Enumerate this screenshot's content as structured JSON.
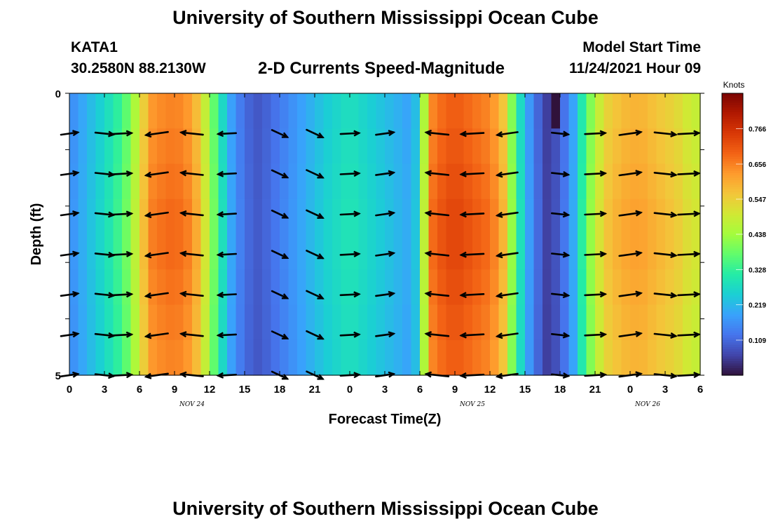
{
  "header": {
    "title": "University of Southern Mississippi Ocean Cube",
    "station_id": "KATA1",
    "station_coords": "30.2580N  88.2130W",
    "plot_title": "2-D Currents Speed-Magnitude",
    "start_label": "Model Start Time",
    "start_value": "11/24/2021 Hour 09"
  },
  "footer": {
    "repeated_title": "University of Southern Mississippi Ocean Cube"
  },
  "chart_data": {
    "type": "heatmap",
    "title": "2-D Currents Speed-Magnitude",
    "xlabel": "Forecast Time(Z)",
    "ylabel": "Depth (ft)",
    "x_tick_labels": [
      "0",
      "3",
      "6",
      "9",
      "12",
      "15",
      "18",
      "21",
      "0",
      "3",
      "6",
      "9",
      "12",
      "15",
      "18",
      "21",
      "0",
      "3",
      "6"
    ],
    "x_date_labels": [
      {
        "label": "NOV 24",
        "tick_index": 3.5
      },
      {
        "label": "NOV 25",
        "tick_index": 11.5
      },
      {
        "label": "NOV 26",
        "tick_index": 16.5
      }
    ],
    "y_tick_labels": [
      "0",
      "5"
    ],
    "ylim": [
      0,
      5
    ],
    "hours": 54,
    "depth_rows": 8,
    "colorbar": {
      "title": "Knots",
      "tick_labels": [
        "0.109",
        "0.219",
        "0.328",
        "0.438",
        "0.547",
        "0.656",
        "0.766"
      ],
      "tick_values": [
        0.109,
        0.219,
        0.328,
        0.438,
        0.547,
        0.656,
        0.766
      ],
      "range": [
        0.0,
        0.876
      ],
      "colors": [
        "#30123b",
        "#4145ab",
        "#4675ed",
        "#39a2fc",
        "#1bcfd4",
        "#24eca6",
        "#61fc6c",
        "#a4fc3c",
        "#d1e834",
        "#f3c63a",
        "#fe9b2d",
        "#f36315",
        "#d93806",
        "#b11901",
        "#7a0403"
      ]
    },
    "speed_profile_knots": [
      [
        0,
        0.16
      ],
      [
        1,
        0.2
      ],
      [
        2,
        0.24
      ],
      [
        3,
        0.28
      ],
      [
        4,
        0.33
      ],
      [
        5,
        0.4
      ],
      [
        6,
        0.52
      ],
      [
        6.5,
        0.6
      ],
      [
        7,
        0.66
      ],
      [
        8,
        0.68
      ],
      [
        9,
        0.69
      ],
      [
        10,
        0.67
      ],
      [
        11,
        0.6
      ],
      [
        12,
        0.45
      ],
      [
        13,
        0.3
      ],
      [
        14,
        0.18
      ],
      [
        15,
        0.12
      ],
      [
        16,
        0.09
      ],
      [
        17,
        0.11
      ],
      [
        18,
        0.14
      ],
      [
        19,
        0.17
      ],
      [
        20,
        0.2
      ],
      [
        21,
        0.23
      ],
      [
        22,
        0.26
      ],
      [
        23,
        0.28
      ],
      [
        24,
        0.3
      ],
      [
        25,
        0.28
      ],
      [
        26,
        0.26
      ],
      [
        27,
        0.24
      ],
      [
        28,
        0.22
      ],
      [
        29,
        0.2
      ],
      [
        30,
        0.26
      ],
      [
        30.5,
        0.55
      ],
      [
        31,
        0.68
      ],
      [
        32,
        0.72
      ],
      [
        33,
        0.74
      ],
      [
        34,
        0.72
      ],
      [
        35,
        0.7
      ],
      [
        36,
        0.68
      ],
      [
        37,
        0.62
      ],
      [
        38,
        0.4
      ],
      [
        39,
        0.22
      ],
      [
        40,
        0.12
      ],
      [
        41,
        0.05
      ],
      [
        42,
        0.1
      ],
      [
        43,
        0.18
      ],
      [
        44,
        0.34
      ],
      [
        45,
        0.48
      ],
      [
        46,
        0.57
      ],
      [
        47,
        0.6
      ],
      [
        48,
        0.62
      ],
      [
        49,
        0.62
      ],
      [
        50,
        0.6
      ],
      [
        51,
        0.58
      ],
      [
        52,
        0.56
      ],
      [
        53,
        0.52
      ],
      [
        54,
        0.5
      ]
    ],
    "vector_times_hours": [
      0,
      3,
      4.5,
      7.5,
      10.5,
      13.5,
      18,
      21,
      24,
      27,
      31.5,
      34.5,
      37.5,
      42,
      45,
      48,
      51,
      53
    ],
    "vector_depth_rows": [
      1,
      2,
      3,
      4,
      5,
      6,
      7
    ]
  }
}
